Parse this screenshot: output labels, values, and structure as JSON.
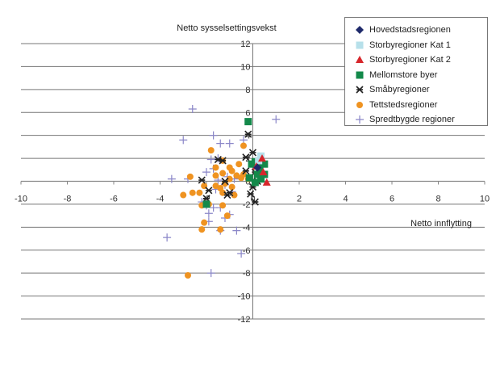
{
  "chart_data": {
    "type": "scatter",
    "title": "",
    "ylabel": "Netto sysselsettingsvekst",
    "xlabel": "Netto innflytting",
    "xlim": [
      -10,
      10
    ],
    "ylim": [
      -12,
      12
    ],
    "xticks": [
      "-10",
      "-8",
      "-6",
      "-4",
      "-2",
      "0",
      "2",
      "4",
      "6",
      "8",
      "10"
    ],
    "yticks": [
      "12",
      "10",
      "8",
      "6",
      "4",
      "2",
      "0",
      "-2",
      "-4",
      "-6",
      "-8",
      "-10",
      "-12"
    ],
    "grid": "horizontal",
    "legend_position": "top-right",
    "series": [
      {
        "name": "Hovedstadsregionen",
        "marker": "diamond",
        "color": "#1f2a6b",
        "points": [
          [
            0.2,
            1.2
          ]
        ]
      },
      {
        "name": "Storbyregioner Kat 1",
        "marker": "square",
        "color": "#b7e0ea",
        "points": [
          [
            0.35,
            2.2
          ],
          [
            0.25,
            1.8
          ]
        ]
      },
      {
        "name": "Storbyregioner Kat 2",
        "marker": "triangle",
        "color": "#d7262b",
        "points": [
          [
            0.4,
            2.0
          ],
          [
            0.45,
            0.8
          ],
          [
            0.6,
            -0.1
          ],
          [
            0.15,
            1.3
          ]
        ]
      },
      {
        "name": "Mellomstore byer",
        "marker": "square",
        "color": "#13894a",
        "points": [
          [
            -0.2,
            5.2
          ],
          [
            -0.05,
            1.5
          ],
          [
            0.1,
            1.7
          ],
          [
            0.3,
            1.2
          ],
          [
            0.5,
            1.5
          ],
          [
            0.2,
            0.6
          ],
          [
            0.5,
            0.6
          ],
          [
            0.1,
            -0.1
          ],
          [
            -0.15,
            0.3
          ],
          [
            -2.0,
            -2.0
          ],
          [
            0.35,
            0.2
          ]
        ]
      },
      {
        "name": "Småbyregioner",
        "marker": "asterisk",
        "color": "#222222",
        "points": [
          [
            -0.2,
            4.1
          ],
          [
            0.0,
            2.5
          ],
          [
            -0.3,
            2.1
          ],
          [
            -1.5,
            1.9
          ],
          [
            -1.3,
            1.8
          ],
          [
            0.1,
            0.8
          ],
          [
            -0.3,
            0.9
          ],
          [
            0.2,
            0.0
          ],
          [
            -2.2,
            0.1
          ],
          [
            0.0,
            -0.5
          ],
          [
            -1.9,
            -0.8
          ],
          [
            -1.0,
            -1.0
          ],
          [
            -0.1,
            -1.1
          ],
          [
            -2.0,
            -1.5
          ],
          [
            -1.1,
            -1.2
          ],
          [
            0.1,
            -1.8
          ],
          [
            -1.2,
            0.0
          ]
        ]
      },
      {
        "name": "Tettstedsregioner",
        "marker": "circle",
        "color": "#ef9321",
        "points": [
          [
            -0.4,
            3.1
          ],
          [
            -1.8,
            2.7
          ],
          [
            -1.3,
            1.8
          ],
          [
            -1.0,
            1.2
          ],
          [
            -0.9,
            0.9
          ],
          [
            -1.3,
            0.7
          ],
          [
            -0.7,
            0.5
          ],
          [
            -0.5,
            0.3
          ],
          [
            -0.2,
            0.2
          ],
          [
            -1.6,
            0.5
          ],
          [
            -1.0,
            0.2
          ],
          [
            -1.2,
            -0.2
          ],
          [
            -1.6,
            -0.4
          ],
          [
            -2.1,
            -0.4
          ],
          [
            -1.4,
            -0.6
          ],
          [
            -0.9,
            -0.5
          ],
          [
            -1.3,
            -1.0
          ],
          [
            -0.8,
            -1.2
          ],
          [
            -2.3,
            -1.0
          ],
          [
            -2.7,
            0.4
          ],
          [
            -3.0,
            -1.2
          ],
          [
            -2.6,
            -1.0
          ],
          [
            -2.2,
            -2.1
          ],
          [
            -1.9,
            -2.0
          ],
          [
            -1.3,
            -2.1
          ],
          [
            -1.1,
            -3.0
          ],
          [
            -2.1,
            -3.6
          ],
          [
            -2.2,
            -4.2
          ],
          [
            -1.4,
            -4.2
          ],
          [
            -2.8,
            -8.2
          ],
          [
            -1.6,
            1.2
          ],
          [
            -0.6,
            1.5
          ],
          [
            -0.4,
            0.6
          ]
        ]
      },
      {
        "name": "Spredtbygde regioner",
        "marker": "plus",
        "color": "#8a86c8",
        "points": [
          [
            -2.6,
            6.3
          ],
          [
            1.0,
            5.4
          ],
          [
            -3.0,
            3.6
          ],
          [
            -1.7,
            4.0
          ],
          [
            -1.4,
            3.3
          ],
          [
            -1.0,
            3.3
          ],
          [
            -0.4,
            3.6
          ],
          [
            -1.5,
            2.0
          ],
          [
            -1.8,
            1.9
          ],
          [
            -1.7,
            1.1
          ],
          [
            -2.0,
            0.8
          ],
          [
            -3.5,
            0.2
          ],
          [
            -2.8,
            0.2
          ],
          [
            -1.5,
            0.1
          ],
          [
            -1.2,
            -0.3
          ],
          [
            -1.6,
            -0.7
          ],
          [
            -0.9,
            -0.9
          ],
          [
            -2.2,
            -1.8
          ],
          [
            -2.0,
            -2.1
          ],
          [
            -1.7,
            -2.3
          ],
          [
            -1.4,
            -2.3
          ],
          [
            -1.9,
            -2.8
          ],
          [
            -1.2,
            -3.2
          ],
          [
            -1.0,
            -2.9
          ],
          [
            -1.9,
            -3.5
          ],
          [
            -1.4,
            -4.3
          ],
          [
            -0.7,
            -4.3
          ],
          [
            -3.7,
            -4.9
          ],
          [
            -0.5,
            -6.3
          ],
          [
            -1.8,
            -8.0
          ],
          [
            -1.1,
            0.4
          ],
          [
            -0.8,
            0.2
          ],
          [
            0.3,
            0.7
          ]
        ]
      }
    ]
  }
}
